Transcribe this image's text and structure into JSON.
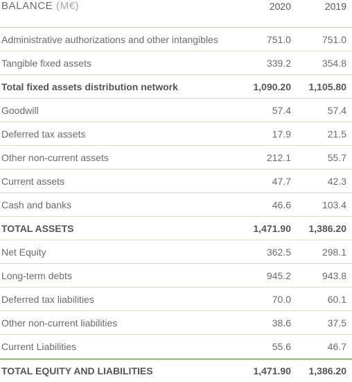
{
  "header": {
    "title": "BALANCE",
    "unit": "(M€)",
    "col_2020": "2020",
    "col_2019": "2019"
  },
  "rows": [
    {
      "label": "Administrative authorizations and other intangibles",
      "v2020": "751.0",
      "v2019": "751.0"
    },
    {
      "label": "Tangible fixed assets",
      "v2020": "339.2",
      "v2019": "354.8"
    },
    {
      "label": "Total fixed assets distribution network",
      "v2020": "1,090.20",
      "v2019": "1,105.80"
    },
    {
      "label": "Goodwill",
      "v2020": "57.4",
      "v2019": "57.4"
    },
    {
      "label": "Deferred tax assets",
      "v2020": "17.9",
      "v2019": "21.5"
    },
    {
      "label": "Other non-current assets",
      "v2020": "212.1",
      "v2019": "55.7"
    },
    {
      "label": "Current assets",
      "v2020": "47.7",
      "v2019": "42.3"
    },
    {
      "label": "Cash and banks",
      "v2020": "46.6",
      "v2019": "103.4"
    },
    {
      "label": "TOTAL ASSETS",
      "v2020": "1,471.90",
      "v2019": "1,386.20"
    },
    {
      "label": "Net Equity",
      "v2020": "362.5",
      "v2019": "298.1"
    },
    {
      "label": "Long-term debts",
      "v2020": "945.2",
      "v2019": "943.8"
    },
    {
      "label": "Deferred tax liabilities",
      "v2020": "70.0",
      "v2019": "60.1"
    },
    {
      "label": "Other non-current liabilities",
      "v2020": "38.6",
      "v2019": "37.5"
    },
    {
      "label": "Current Liabilities",
      "v2020": "55.6",
      "v2019": "46.7"
    },
    {
      "label": "TOTAL EQUITY AND LIABILITIES",
      "v2020": "1,471.90",
      "v2019": "1,386.20"
    }
  ],
  "colors": {
    "rule": "#cfe2bc",
    "rule_strong": "#8cbd62",
    "text": "#6b6b6b",
    "muted": "#a8a8a8"
  }
}
